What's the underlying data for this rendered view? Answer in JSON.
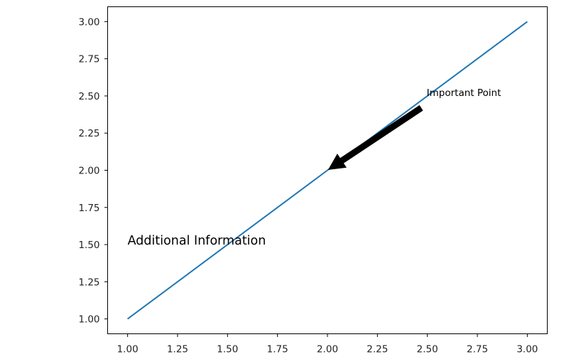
{
  "chart_data": {
    "type": "line",
    "title": "",
    "xlabel": "",
    "ylabel": "",
    "xlim": [
      0.9,
      3.1
    ],
    "ylim": [
      0.9,
      3.1
    ],
    "x_ticks": [
      1.0,
      1.25,
      1.5,
      1.75,
      2.0,
      2.25,
      2.5,
      2.75,
      3.0
    ],
    "x_tick_labels": [
      "1.00",
      "1.25",
      "1.50",
      "1.75",
      "2.00",
      "2.25",
      "2.50",
      "2.75",
      "3.00"
    ],
    "y_ticks": [
      1.0,
      1.25,
      1.5,
      1.75,
      2.0,
      2.25,
      2.5,
      2.75,
      3.0
    ],
    "y_tick_labels": [
      "1.00",
      "1.25",
      "1.50",
      "1.75",
      "2.00",
      "2.25",
      "2.50",
      "2.75",
      "3.00"
    ],
    "grid": false,
    "series": [
      {
        "x": [
          1,
          2,
          3
        ],
        "y": [
          1,
          2,
          3
        ],
        "color": "#1f77b4"
      }
    ],
    "annotations": [
      {
        "text": "Important Point",
        "xy": [
          2,
          2
        ],
        "xytext": [
          2.5,
          2.5
        ],
        "arrow": true,
        "arrow_color": "#000000"
      },
      {
        "text": "Additional Information",
        "xy": [
          1.0,
          1.5
        ]
      }
    ]
  }
}
